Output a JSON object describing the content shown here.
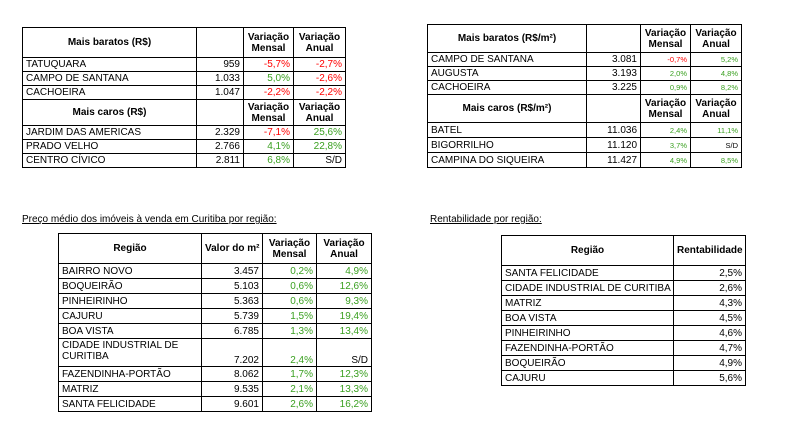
{
  "colors": {
    "positive": "#3aa020",
    "negative": "#ff0000"
  },
  "table1": {
    "head_cheap": {
      "label": "Mais baratos (R$)",
      "var_m": "Variação Mensal",
      "var_a": "Variação Anual"
    },
    "cheap": [
      {
        "name": "TATUQUARA",
        "value": "959",
        "vm": "-5,7%",
        "va": "-2,7%"
      },
      {
        "name": "CAMPO DE SANTANA",
        "value": "1.033",
        "vm": "5,0%",
        "va": "-2,6%"
      },
      {
        "name": "CACHOEIRA",
        "value": "1.047",
        "vm": "-2,2%",
        "va": "-2,2%"
      }
    ],
    "head_exp": {
      "label": "Mais caros (R$)",
      "var_m": "Variação Mensal",
      "var_a": "Variação Anual"
    },
    "exp": [
      {
        "name": "JARDIM DAS AMERICAS",
        "value": "2.329",
        "vm": "-7,1%",
        "va": "25,6%"
      },
      {
        "name": "PRADO VELHO",
        "value": "2.766",
        "vm": "4,1%",
        "va": "22,8%"
      },
      {
        "name": "CENTRO CÍVICO",
        "value": "2.811",
        "vm": "6,8%",
        "va": "S/D"
      }
    ]
  },
  "table2": {
    "head_cheap": {
      "label": "Mais baratos (R$/m²)",
      "var_m": "Variação Mensal",
      "var_a": "Variação Anual"
    },
    "cheap": [
      {
        "name": "CAMPO DE SANTANA",
        "value": "3.081",
        "vm": "-0,7%",
        "va": "5,2%"
      },
      {
        "name": "AUGUSTA",
        "value": "3.193",
        "vm": "2,0%",
        "va": "4,8%"
      },
      {
        "name": "CACHOEIRA",
        "value": "3.225",
        "vm": "0,9%",
        "va": "8,2%"
      }
    ],
    "head_exp": {
      "label": "Mais caros (R$/m²)",
      "var_m": "Variação Mensal",
      "var_a": "Variação Anual"
    },
    "exp": [
      {
        "name": "BATEL",
        "value": "11.036",
        "vm": "2,4%",
        "va": "11,1%"
      },
      {
        "name": "BIGORRILHO",
        "value": "11.120",
        "vm": "3,7%",
        "va": "S/D"
      },
      {
        "name": "CAMPINA DO SIQUEIRA",
        "value": "11.427",
        "vm": "4,9%",
        "va": "8,5%"
      }
    ]
  },
  "table3": {
    "title": "Preço médio dos imóveis à venda em Curitiba por região:",
    "headers": {
      "region": "Região",
      "value": "Valor do m²",
      "var_m": "Variação Mensal",
      "var_a": "Variação Anual"
    },
    "rows": [
      {
        "name": "BAIRRO NOVO",
        "value": "3.457",
        "vm": "0,2%",
        "va": "4,9%"
      },
      {
        "name": "BOQUEIRÃO",
        "value": "5.103",
        "vm": "0,6%",
        "va": "12,6%"
      },
      {
        "name": "PINHEIRINHO",
        "value": "5.363",
        "vm": "0,6%",
        "va": "9,3%"
      },
      {
        "name": "CAJURU",
        "value": "5.739",
        "vm": "1,5%",
        "va": "19,4%"
      },
      {
        "name": "BOA VISTA",
        "value": "6.785",
        "vm": "1,3%",
        "va": "13,4%"
      },
      {
        "name": "CIDADE INDUSTRIAL DE CURITIBA",
        "value": "7.202",
        "vm": "2,4%",
        "va": "S/D"
      },
      {
        "name": "FAZENDINHA-PORTÃO",
        "value": "8.062",
        "vm": "1,7%",
        "va": "12,3%"
      },
      {
        "name": "MATRIZ",
        "value": "9.535",
        "vm": "2,1%",
        "va": "13,3%"
      },
      {
        "name": "SANTA FELICIDADE",
        "value": "9.601",
        "vm": "2,6%",
        "va": "16,2%"
      }
    ]
  },
  "table4": {
    "title": "Rentabilidade por região:",
    "headers": {
      "region": "Região",
      "rent": "Rentabilidade"
    },
    "rows": [
      {
        "name": "SANTA FELICIDADE",
        "rent": "2,5%"
      },
      {
        "name": "CIDADE INDUSTRIAL DE CURITIBA",
        "rent": "2,6%"
      },
      {
        "name": "MATRIZ",
        "rent": "4,3%"
      },
      {
        "name": "BOA VISTA",
        "rent": "4,5%"
      },
      {
        "name": "PINHEIRINHO",
        "rent": "4,6%"
      },
      {
        "name": "FAZENDINHA-PORTÃO",
        "rent": "4,7%"
      },
      {
        "name": "BOQUEIRÃO",
        "rent": "4,9%"
      },
      {
        "name": "CAJURU",
        "rent": "5,6%"
      }
    ]
  }
}
